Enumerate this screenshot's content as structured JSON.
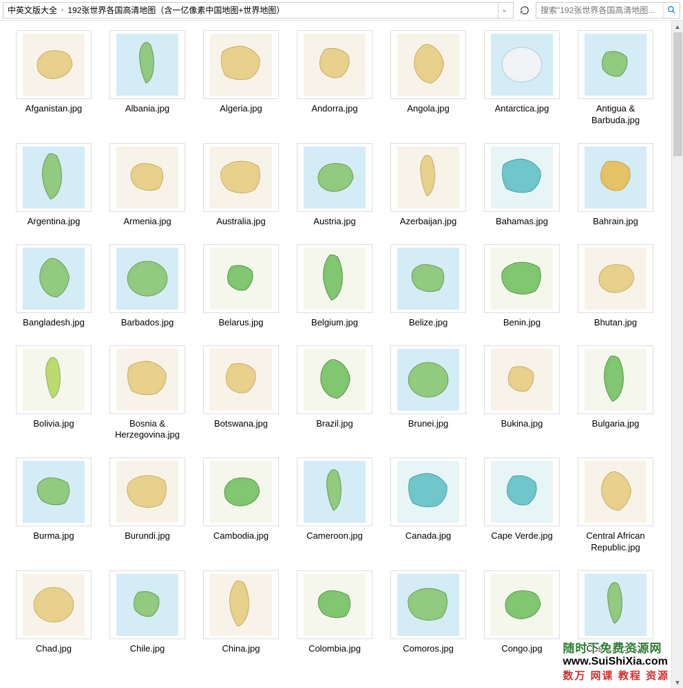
{
  "breadcrumb": {
    "item1": "中英文版大全",
    "item2": "192张世界各国高清地图（含一亿像素中国地图+世界地图）"
  },
  "search": {
    "placeholder": "搜索\"192张世界各国高清地图..."
  },
  "files": [
    {
      "label": "Afganistan.jpg",
      "palette": "yg"
    },
    {
      "label": "Albania.jpg",
      "palette": "gb"
    },
    {
      "label": "Algeria.jpg",
      "palette": "yg"
    },
    {
      "label": "Andorra.jpg",
      "palette": "yg"
    },
    {
      "label": "Angola.jpg",
      "palette": "yg"
    },
    {
      "label": "Antarctica.jpg",
      "palette": "wb"
    },
    {
      "label": "Antigua & Barbuda.jpg",
      "palette": "gb"
    },
    {
      "label": "Argentina.jpg",
      "palette": "gb"
    },
    {
      "label": "Armenia.jpg",
      "palette": "yg"
    },
    {
      "label": "Australia.jpg",
      "palette": "yg"
    },
    {
      "label": "Austria.jpg",
      "palette": "gb"
    },
    {
      "label": "Azerbaijan.jpg",
      "palette": "yg"
    },
    {
      "label": "Bahamas.jpg",
      "palette": "tb"
    },
    {
      "label": "Bahrain.jpg",
      "palette": "yb"
    },
    {
      "label": "Bangladesh.jpg",
      "palette": "gb"
    },
    {
      "label": "Barbados.jpg",
      "palette": "gb"
    },
    {
      "label": "Belarus.jpg",
      "palette": "gg"
    },
    {
      "label": "Belgium.jpg",
      "palette": "gg"
    },
    {
      "label": "Belize.jpg",
      "palette": "gb"
    },
    {
      "label": "Benin.jpg",
      "palette": "gg"
    },
    {
      "label": "Bhutan.jpg",
      "palette": "yg"
    },
    {
      "label": "Bolivia.jpg",
      "palette": "lg"
    },
    {
      "label": "Bosnia & Herzegovina.jpg",
      "palette": "yg"
    },
    {
      "label": "Botswana.jpg",
      "palette": "yg"
    },
    {
      "label": "Brazil.jpg",
      "palette": "gg"
    },
    {
      "label": "Brunei.jpg",
      "palette": "gb"
    },
    {
      "label": "Bukina.jpg",
      "palette": "yg"
    },
    {
      "label": "Bulgaria.jpg",
      "palette": "gg"
    },
    {
      "label": "Burma.jpg",
      "palette": "gb"
    },
    {
      "label": "Burundi.jpg",
      "palette": "yg"
    },
    {
      "label": "Cambodia.jpg",
      "palette": "gg"
    },
    {
      "label": "Cameroon.jpg",
      "palette": "gb"
    },
    {
      "label": "Canada.jpg",
      "palette": "tb"
    },
    {
      "label": "Cape Verde.jpg",
      "palette": "tb"
    },
    {
      "label": "Central African Republic.jpg",
      "palette": "yg"
    },
    {
      "label": "Chad.jpg",
      "palette": "yg"
    },
    {
      "label": "Chile.jpg",
      "palette": "gb"
    },
    {
      "label": "China.jpg",
      "palette": "yg"
    },
    {
      "label": "Colombia.jpg",
      "palette": "gg"
    },
    {
      "label": "Comoros.jpg",
      "palette": "gb"
    },
    {
      "label": "Congo.jpg",
      "palette": "gg"
    },
    {
      "label": "Costa Rica.jpg",
      "palette": "gb"
    }
  ],
  "palettes": {
    "yg": {
      "fill": "#e8d088",
      "stroke": "#c9a05c",
      "bg": "#f7f3e8"
    },
    "gb": {
      "fill": "#8fc97a",
      "stroke": "#5a9148",
      "bg": "#d4ecf5"
    },
    "gg": {
      "fill": "#7bc46a",
      "stroke": "#4f8a3e",
      "bg": "#f5f7ed"
    },
    "lg": {
      "fill": "#b8d96a",
      "stroke": "#8aa84a",
      "bg": "#f5f7ed"
    },
    "wb": {
      "fill": "#f2f5f7",
      "stroke": "#a8c4d6",
      "bg": "#d4ecf5"
    },
    "tb": {
      "fill": "#6bc4c9",
      "stroke": "#3a9aa0",
      "bg": "#e8f5f7"
    },
    "yb": {
      "fill": "#e8c060",
      "stroke": "#c49840",
      "bg": "#d4ecf5"
    }
  },
  "shapes": [
    "M30,35 Q20,45 25,60 Q35,75 55,72 Q75,68 80,50 Q78,30 60,28 Q40,25 30,35 Z",
    "M45,15 Q35,25 38,45 Q40,65 48,80 Q58,75 60,55 Q62,35 55,18 Q50,12 45,15 Z",
    "M20,30 Q15,50 25,68 Q45,78 65,72 Q82,60 80,40 Q70,22 48,20 Q28,22 20,30 Z",
    "M35,25 Q22,40 28,58 Q40,75 60,70 Q78,55 72,35 Q58,20 35,25 Z",
    "M40,20 Q25,32 28,55 Q35,78 55,80 Q72,70 75,48 Q70,25 52,18 Q45,16 40,20 Z",
    "M50,50 m-32,0 a32,28 0 1,0 64,0 a32,28 0 1,0 -64,0 Z",
    "M35,30 Q25,42 30,58 Q42,72 58,68 Q72,55 68,38 Q55,25 35,30 Z",
    "M42,12 Q30,28 32,50 Q35,72 45,85 Q58,80 62,58 Q65,35 55,15 Q48,10 42,12 Z",
    "M25,38 Q20,52 32,65 Q50,75 68,68 Q80,52 72,35 Q55,25 38,28 Q28,32 25,38 Z",
    "M18,40 Q15,58 30,70 Q52,80 72,70 Q85,52 78,32 Q60,20 38,25 Q22,30 18,40 Z"
  ],
  "watermark": {
    "line1": "随时下免费资源网",
    "line2": "www.SuiShiXia.com",
    "line3": "数万 网课 教程 资源"
  },
  "colors": {
    "border": "#cccccc",
    "text": "#000000",
    "placeholder": "#999999",
    "hover": "#e5f3ff",
    "scrollTrack": "#f0f0f0",
    "scrollThumb": "#cdcdcd"
  }
}
